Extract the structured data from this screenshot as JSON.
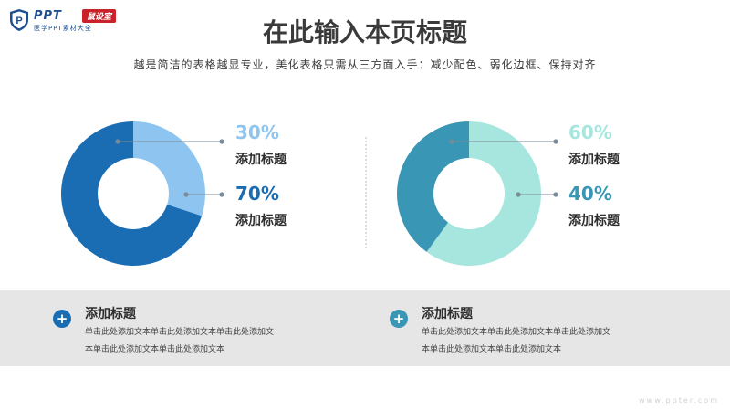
{
  "logo": {
    "brand": "PPT",
    "badge": "鼠设室",
    "sub": "医学PPT素材大全",
    "icon": "shield-p-icon",
    "colors": {
      "brand": "#1d4f8f",
      "badge": "#c9222b"
    }
  },
  "header": {
    "title": "在此输入本页标题",
    "subtitle": "越是简洁的表格越显专业，美化表格只需从三方面入手：减少配色、弱化边框、保持对齐"
  },
  "chart_data": [
    {
      "type": "pie",
      "donut": true,
      "slices": [
        {
          "label": "添加标题",
          "value": 30,
          "value_text": "30%",
          "color": "#8ec5f0"
        },
        {
          "label": "添加标题",
          "value": 70,
          "value_text": "70%",
          "color": "#1a6db3"
        }
      ]
    },
    {
      "type": "pie",
      "donut": true,
      "slices": [
        {
          "label": "添加标题",
          "value": 60,
          "value_text": "60%",
          "color": "#a6e6df"
        },
        {
          "label": "添加标题",
          "value": 40,
          "value_text": "40%",
          "color": "#3a96b5"
        }
      ]
    }
  ],
  "band": {
    "items": [
      {
        "title": "添加标题",
        "icon": "plus-icon",
        "color": "#1a6db3",
        "lines": [
          "单击此处添加文本单击此处添加文本单击此处添加文",
          "本单击此处添加文本单击此处添加文本"
        ]
      },
      {
        "title": "添加标题",
        "icon": "plus-icon",
        "color": "#3a96b5",
        "lines": [
          "单击此处添加文本单击此处添加文本单击此处添加文",
          "本单击此处添加文本单击此处添加文本"
        ]
      }
    ]
  },
  "footer": {
    "url": "www.ppter.com"
  }
}
